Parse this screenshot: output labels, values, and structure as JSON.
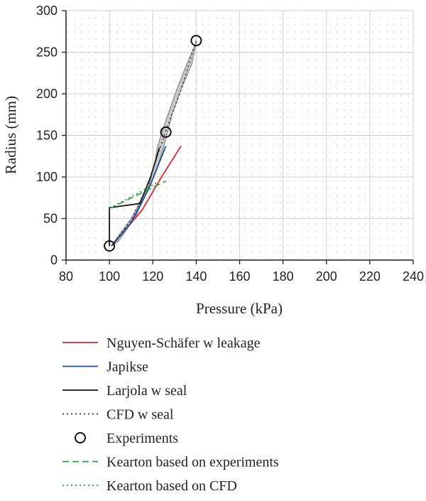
{
  "chart_data": {
    "type": "line",
    "title": "",
    "xlabel": "Pressure (kPa)",
    "ylabel": "Radius (mm)",
    "xlim": [
      80,
      240
    ],
    "ylim": [
      0,
      300
    ],
    "xticks": [
      80,
      100,
      120,
      140,
      160,
      180,
      200,
      220,
      240
    ],
    "yticks": [
      0,
      50,
      100,
      150,
      200,
      250,
      300
    ],
    "grid": true,
    "legend": "below",
    "band": {
      "name": "",
      "color": "#c8c8c8",
      "upper": [
        [
          101,
          18
        ],
        [
          110,
          50
        ],
        [
          118,
          88
        ],
        [
          121,
          118
        ],
        [
          122,
          135
        ],
        [
          124,
          152
        ],
        [
          126,
          168
        ],
        [
          131,
          205
        ],
        [
          136,
          238
        ],
        [
          140,
          262
        ]
      ],
      "lower": [
        [
          140,
          262
        ],
        [
          138,
          236
        ],
        [
          133,
          205
        ],
        [
          129,
          176
        ],
        [
          127,
          156
        ],
        [
          125,
          136
        ],
        [
          122,
          110
        ],
        [
          117,
          80
        ],
        [
          112,
          52
        ],
        [
          104,
          22
        ],
        [
          101,
          18
        ]
      ]
    },
    "series": [
      {
        "name": "Nguyen-Schäfer w leakage",
        "style": "solid",
        "color": "#e0262b",
        "points": [
          [
            101,
            17
          ],
          [
            115,
            60
          ],
          [
            124,
            100
          ],
          [
            133,
            137
          ]
        ]
      },
      {
        "name": "Japikse",
        "style": "solid",
        "color": "#1f4e9e",
        "points": [
          [
            101,
            17
          ],
          [
            110,
            45
          ],
          [
            118,
            85
          ],
          [
            126,
            137
          ]
        ]
      },
      {
        "name": "Larjola w seal",
        "style": "solid",
        "color": "#111111",
        "points": [
          [
            100,
            17
          ],
          [
            100,
            63
          ],
          [
            114,
            68
          ],
          [
            119,
            100
          ],
          [
            123,
            135
          ]
        ]
      },
      {
        "name": "CFD w seal",
        "style": "dotted",
        "color": "#333333",
        "points": [
          [
            101,
            17
          ],
          [
            110,
            48
          ],
          [
            118,
            92
          ],
          [
            122,
            125
          ],
          [
            126,
            155
          ],
          [
            133,
            205
          ],
          [
            140,
            264
          ]
        ]
      },
      {
        "name": "Experiments",
        "style": "marker",
        "color": "#111111",
        "points": [
          [
            100,
            17
          ],
          [
            126,
            154
          ],
          [
            140,
            264
          ]
        ]
      },
      {
        "name": "Kearton based on experiments",
        "style": "dashed",
        "color": "#2a9d3a",
        "points": [
          [
            100,
            62
          ],
          [
            126,
            95
          ]
        ]
      },
      {
        "name": "Kearton based on CFD",
        "style": "dotted",
        "color": "#2a9d3a",
        "points": [
          [
            102,
            65
          ],
          [
            124,
            96
          ]
        ]
      }
    ]
  }
}
